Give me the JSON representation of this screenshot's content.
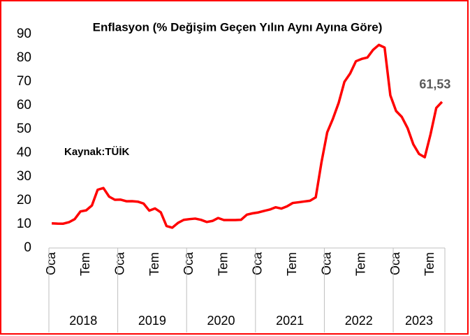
{
  "chart_data": {
    "type": "line",
    "title": "Enflasyon (% Değişim Geçen Yılın Aynı Ayına Göre)",
    "annotation": "Kaynak:TÜİK",
    "categories": [
      "Oca",
      null,
      null,
      null,
      null,
      null,
      "Tem",
      null,
      null,
      null,
      null,
      null,
      "Oca",
      null,
      null,
      null,
      null,
      null,
      "Tem",
      null,
      null,
      null,
      null,
      null,
      "Oca",
      null,
      null,
      null,
      null,
      null,
      "Tem",
      null,
      null,
      null,
      null,
      null,
      "Oca",
      null,
      null,
      null,
      null,
      null,
      "Tem",
      null,
      null,
      null,
      null,
      null,
      "Oca",
      null,
      null,
      null,
      null,
      null,
      "Tem",
      null,
      null,
      null,
      null,
      null,
      "Oca",
      null,
      null,
      null,
      null,
      null,
      "Tem",
      null,
      null
    ],
    "years": [
      "2018",
      "2019",
      "2020",
      "2021",
      "2022",
      "2023"
    ],
    "series": [
      {
        "name": "Enflasyon",
        "color": "#ff0000",
        "values": [
          10.35,
          10.26,
          10.23,
          10.85,
          12.15,
          15.39,
          15.85,
          17.9,
          24.52,
          25.24,
          21.62,
          20.3,
          20.35,
          19.67,
          19.71,
          19.5,
          18.71,
          15.72,
          16.65,
          15.01,
          9.26,
          8.55,
          10.56,
          11.84,
          12.15,
          12.37,
          11.86,
          10.94,
          11.39,
          12.62,
          11.76,
          11.77,
          11.75,
          11.89,
          14.03,
          14.6,
          14.97,
          15.61,
          16.19,
          17.14,
          16.59,
          17.53,
          18.95,
          19.25,
          19.58,
          19.89,
          21.31,
          36.08,
          48.69,
          54.44,
          61.14,
          69.97,
          73.5,
          78.62,
          79.6,
          80.21,
          83.45,
          85.51,
          84.39,
          64.27,
          57.68,
          55.18,
          50.51,
          43.68,
          39.59,
          38.21,
          47.83,
          58.94,
          61.53
        ],
        "value_labels": [
          null,
          null,
          null,
          null,
          null,
          null,
          null,
          null,
          null,
          null,
          null,
          null,
          null,
          null,
          null,
          null,
          null,
          null,
          null,
          null,
          null,
          null,
          null,
          null,
          null,
          null,
          null,
          null,
          null,
          null,
          null,
          null,
          null,
          null,
          null,
          null,
          null,
          null,
          null,
          null,
          null,
          null,
          null,
          null,
          null,
          null,
          null,
          null,
          null,
          null,
          null,
          null,
          null,
          null,
          null,
          null,
          null,
          null,
          null,
          null,
          null,
          null,
          null,
          null,
          null,
          null,
          null,
          null,
          "61,53"
        ]
      }
    ],
    "ylim": [
      0,
      90
    ],
    "yticks": [
      0,
      10,
      20,
      30,
      40,
      50,
      60,
      70,
      80,
      90
    ],
    "grid": false
  }
}
